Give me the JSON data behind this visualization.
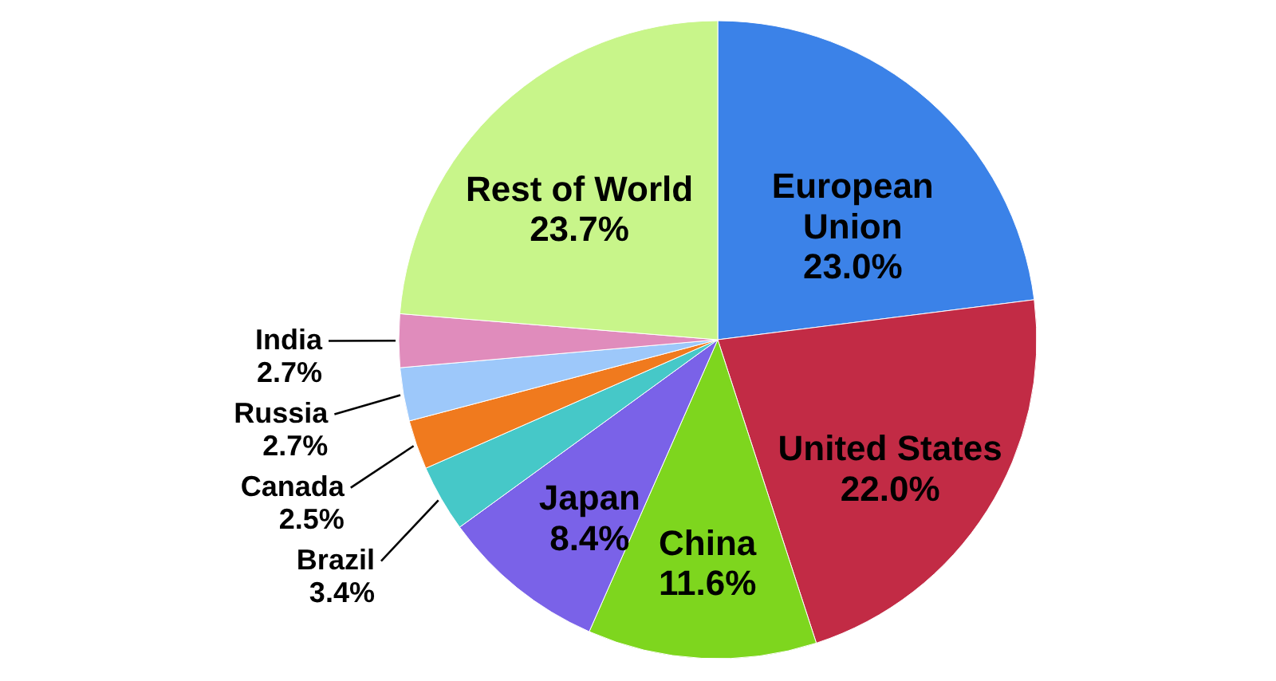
{
  "chart_data": {
    "type": "pie",
    "categories": [
      "European Union",
      "United States",
      "China",
      "Japan",
      "Brazil",
      "Canada",
      "Russia",
      "India",
      "Rest of World"
    ],
    "values": [
      23.0,
      22.0,
      11.6,
      8.4,
      3.4,
      2.5,
      2.7,
      2.7,
      23.7
    ],
    "colors": [
      "#3b82e8",
      "#c22b45",
      "#7ed61e",
      "#7a62e8",
      "#46c8c8",
      "#f07a1e",
      "#9dc8fa",
      "#e08cbc",
      "#c8f58a"
    ],
    "value_labels": [
      "23.0%",
      "22.0%",
      "11.6%",
      "8.4%",
      "3.4%",
      "2.5%",
      "2.7%",
      "2.7%",
      "23.7%"
    ]
  }
}
